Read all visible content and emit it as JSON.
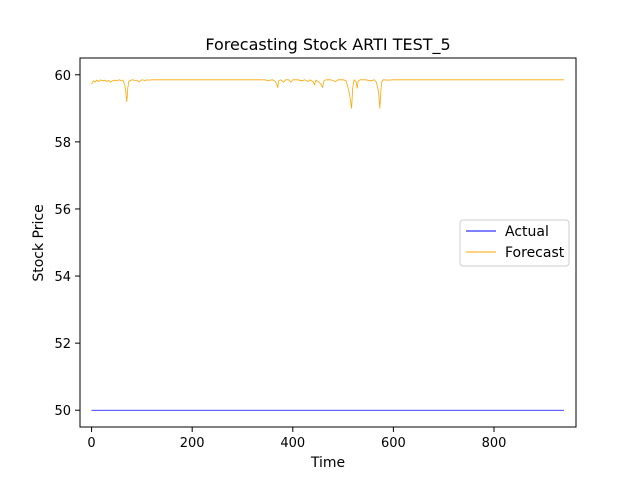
{
  "chart_data": {
    "type": "line",
    "title": "Forecasting Stock ARTI TEST_5",
    "xlabel": "Time",
    "ylabel": "Stock Price",
    "xlim": [
      -23,
      963
    ],
    "ylim": [
      49.5,
      60.5
    ],
    "xticks": [
      0,
      200,
      400,
      600,
      800
    ],
    "yticks": [
      50,
      52,
      54,
      56,
      58,
      60
    ],
    "grid": false,
    "legend_placement": "center-right",
    "series": [
      {
        "name": "Actual",
        "color": "#0000ff",
        "points": [
          [
            0,
            50.0
          ],
          [
            939,
            50.0
          ]
        ]
      },
      {
        "name": "Forecast",
        "color": "#ffa500",
        "points": [
          [
            0,
            59.72
          ],
          [
            4,
            59.82
          ],
          [
            7,
            59.78
          ],
          [
            10,
            59.84
          ],
          [
            14,
            59.8
          ],
          [
            18,
            59.85
          ],
          [
            22,
            59.82
          ],
          [
            26,
            59.84
          ],
          [
            30,
            59.8
          ],
          [
            34,
            59.83
          ],
          [
            38,
            59.78
          ],
          [
            42,
            59.82
          ],
          [
            46,
            59.84
          ],
          [
            50,
            59.82
          ],
          [
            54,
            59.85
          ],
          [
            58,
            59.83
          ],
          [
            62,
            59.84
          ],
          [
            64,
            59.78
          ],
          [
            66,
            59.7
          ],
          [
            68,
            59.5
          ],
          [
            70,
            59.2
          ],
          [
            72,
            59.6
          ],
          [
            74,
            59.8
          ],
          [
            78,
            59.84
          ],
          [
            82,
            59.85
          ],
          [
            86,
            59.83
          ],
          [
            90,
            59.84
          ],
          [
            94,
            59.78
          ],
          [
            98,
            59.84
          ],
          [
            102,
            59.85
          ],
          [
            106,
            59.82
          ],
          [
            110,
            59.85
          ],
          [
            114,
            59.84
          ],
          [
            120,
            59.85
          ],
          [
            200,
            59.85
          ],
          [
            300,
            59.85
          ],
          [
            345,
            59.85
          ],
          [
            350,
            59.82
          ],
          [
            355,
            59.84
          ],
          [
            360,
            59.85
          ],
          [
            365,
            59.8
          ],
          [
            368,
            59.72
          ],
          [
            370,
            59.62
          ],
          [
            372,
            59.82
          ],
          [
            376,
            59.85
          ],
          [
            382,
            59.78
          ],
          [
            386,
            59.85
          ],
          [
            392,
            59.85
          ],
          [
            396,
            59.78
          ],
          [
            400,
            59.85
          ],
          [
            410,
            59.85
          ],
          [
            418,
            59.82
          ],
          [
            424,
            59.85
          ],
          [
            430,
            59.8
          ],
          [
            434,
            59.85
          ],
          [
            440,
            59.8
          ],
          [
            443,
            59.7
          ],
          [
            446,
            59.84
          ],
          [
            452,
            59.78
          ],
          [
            456,
            59.72
          ],
          [
            459,
            59.62
          ],
          [
            462,
            59.82
          ],
          [
            466,
            59.85
          ],
          [
            475,
            59.85
          ],
          [
            485,
            59.8
          ],
          [
            490,
            59.85
          ],
          [
            500,
            59.85
          ],
          [
            506,
            59.82
          ],
          [
            510,
            59.6
          ],
          [
            513,
            59.4
          ],
          [
            515,
            59.2
          ],
          [
            517,
            59.0
          ],
          [
            519,
            59.6
          ],
          [
            522,
            59.85
          ],
          [
            526,
            59.78
          ],
          [
            528,
            59.6
          ],
          [
            530,
            59.82
          ],
          [
            534,
            59.85
          ],
          [
            545,
            59.85
          ],
          [
            555,
            59.82
          ],
          [
            562,
            59.85
          ],
          [
            566,
            59.78
          ],
          [
            569,
            59.6
          ],
          [
            571,
            59.4
          ],
          [
            573,
            59.0
          ],
          [
            575,
            59.5
          ],
          [
            577,
            59.8
          ],
          [
            580,
            59.85
          ],
          [
            590,
            59.84
          ],
          [
            600,
            59.85
          ],
          [
            700,
            59.85
          ],
          [
            800,
            59.85
          ],
          [
            939,
            59.85
          ]
        ]
      }
    ]
  }
}
